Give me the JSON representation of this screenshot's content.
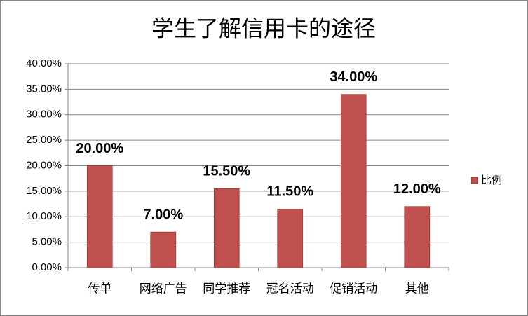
{
  "chart_data": {
    "type": "bar",
    "title": "学生了解信用卡的途径",
    "categories": [
      "传单",
      "网络广告",
      "同学推荐",
      "冠名活动",
      "促销活动",
      "其他"
    ],
    "series": [
      {
        "name": "比例",
        "color": "#c0504d",
        "values": [
          20,
          7,
          15.5,
          11.5,
          34,
          12
        ],
        "value_labels": [
          "20.00%",
          "7.00%",
          "15.50%",
          "11.50%",
          "34.00%",
          "12.00%"
        ]
      }
    ],
    "ylim": [
      0,
      40
    ],
    "yticks": [
      {
        "value": 0,
        "label": "0.00%"
      },
      {
        "value": 5,
        "label": "5.00%"
      },
      {
        "value": 10,
        "label": "10.00%"
      },
      {
        "value": 15,
        "label": "15.00%"
      },
      {
        "value": 20,
        "label": "20.00%"
      },
      {
        "value": 25,
        "label": "25.00%"
      },
      {
        "value": 30,
        "label": "30.00%"
      },
      {
        "value": 35,
        "label": "35.00%"
      },
      {
        "value": 40,
        "label": "40.00%"
      }
    ],
    "grid": true,
    "legend": "right"
  }
}
